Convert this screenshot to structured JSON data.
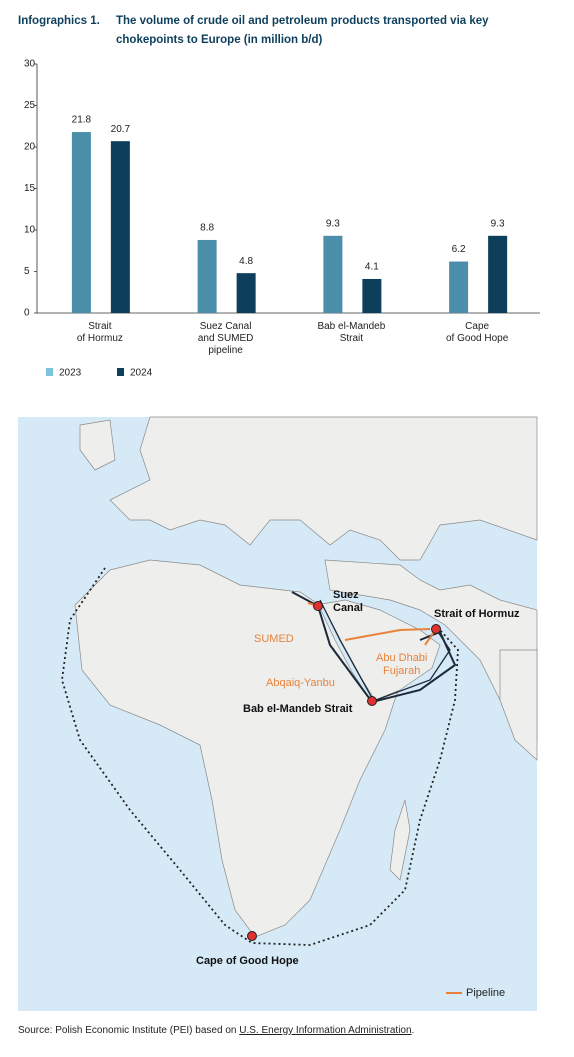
{
  "chart_data": {
    "type": "bar",
    "label": "Infographics 1.",
    "title": "The volume of crude oil and petroleum products transported via key chokepoints to Europe (in million b/d)",
    "categories": [
      "Strait\nof Hormuz",
      "Suez Canal\nand SUMED\npipeline",
      "Bab el-Mandeb\nStrait",
      "Cape\nof Good Hope"
    ],
    "series": [
      {
        "name": "2023",
        "color": "#4b8ea9",
        "values": [
          21.8,
          8.8,
          9.3,
          6.2
        ]
      },
      {
        "name": "2024",
        "color": "#0d3f5c",
        "values": [
          20.7,
          4.8,
          4.1,
          9.3
        ]
      }
    ],
    "ylim": [
      0,
      30
    ],
    "yticks": [
      0,
      5,
      10,
      15,
      20,
      25,
      30
    ],
    "grid": false
  },
  "map": {
    "labels": [
      "Suez\nCanal",
      "Strait of Hormuz",
      "Bab el-Mandeb Strait",
      "Cape of Good Hope"
    ],
    "pipelines": [
      "SUMED",
      "Abqaiq-Yanbu",
      "Abu Dhabi\nFujarah"
    ],
    "legend": "Pipeline"
  },
  "source": {
    "text": "Source: Polish Economic Institute (PEI) based on",
    "link": "U.S. Energy Information Administration",
    "end": "."
  }
}
